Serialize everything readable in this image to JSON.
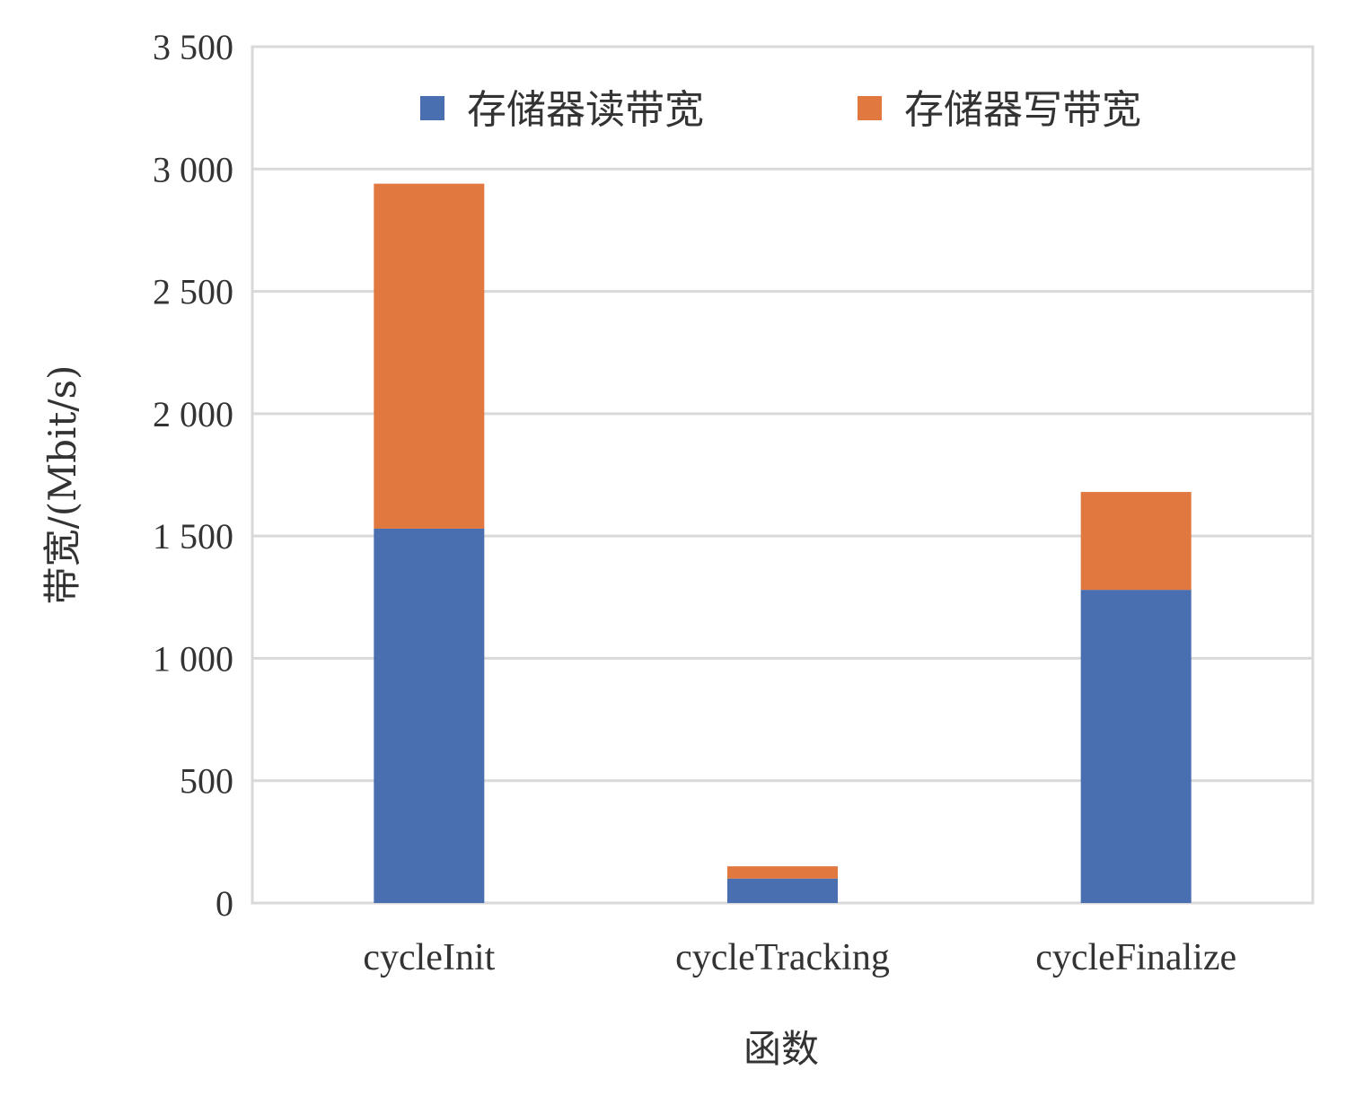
{
  "chart_data": {
    "type": "bar",
    "stacked": true,
    "categories": [
      "cycleInit",
      "cycleTracking",
      "cycleFinalize"
    ],
    "series": [
      {
        "name": "存储器读带宽",
        "color": "#4a6fb1",
        "values": [
          1530,
          100,
          1280
        ]
      },
      {
        "name": "存储器写带宽",
        "color": "#e07840",
        "values": [
          1410,
          50,
          400
        ]
      }
    ],
    "xlabel": "函数",
    "ylabel": "带宽/(Mbit/s)",
    "ylim": [
      0,
      3500
    ],
    "yticks": [
      0,
      500,
      1000,
      1500,
      2000,
      2500,
      3000,
      3500
    ],
    "ytick_labels": [
      "0",
      "500",
      "1 000",
      "1 500",
      "2 000",
      "2 500",
      "3 000",
      "3 500"
    ],
    "grid": true,
    "legend_position": "top-center"
  }
}
